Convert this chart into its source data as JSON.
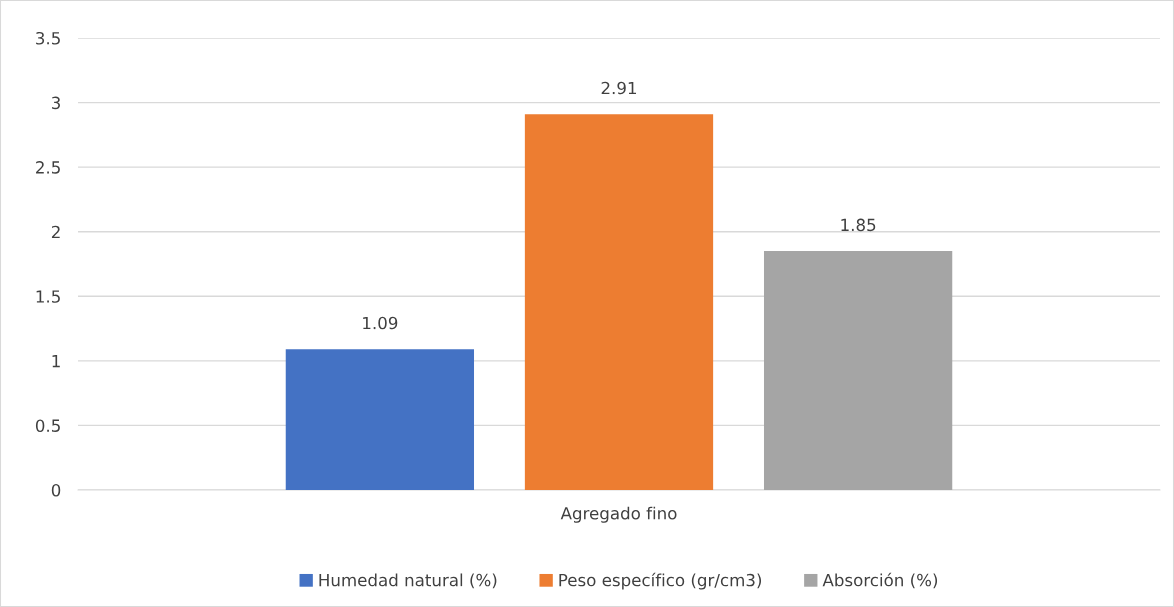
{
  "chart_data": {
    "type": "bar",
    "categories": [
      "Agregado fino"
    ],
    "series": [
      {
        "name": "Humedad natural (%)",
        "color": "#4472c4",
        "values": [
          1.09
        ]
      },
      {
        "name": "Peso específico (gr/cm3)",
        "color": "#ed7d31",
        "values": [
          2.91
        ]
      },
      {
        "name": "Absorción (%)",
        "color": "#a5a5a5",
        "values": [
          1.85
        ]
      }
    ],
    "ylim": [
      0,
      3.5
    ],
    "yticks": [
      0,
      0.5,
      1,
      1.5,
      2,
      2.5,
      3,
      3.5
    ],
    "grid": "y",
    "legend": "bottom",
    "data_labels": true
  }
}
